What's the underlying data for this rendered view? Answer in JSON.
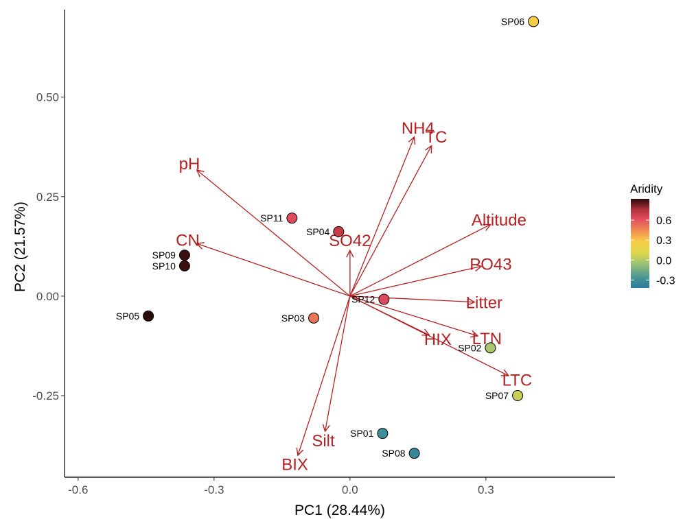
{
  "chart_data": {
    "type": "scatter",
    "subtype": "pca-biplot",
    "xlabel": "PC1 (28.44%)",
    "ylabel": "PC2 (21.57%)",
    "xlim": [
      -0.63,
      0.585
    ],
    "ylim": [
      -0.455,
      0.72
    ],
    "xticks": [
      -0.6,
      -0.3,
      0.0,
      0.3
    ],
    "xtick_labels": [
      "-0.6",
      "-0.3",
      "0.0",
      "0.3"
    ],
    "yticks": [
      -0.25,
      0.0,
      0.25,
      0.5
    ],
    "ytick_labels": [
      "-0.25",
      "0.00",
      "0.25",
      "0.50"
    ],
    "grid": false,
    "arrow_color": "#b22222",
    "points": [
      {
        "label": "SP01",
        "x": 0.072,
        "y": -0.345,
        "aridity": -0.3
      },
      {
        "label": "SP02",
        "x": 0.31,
        "y": -0.13,
        "aridity": -0.02
      },
      {
        "label": "SP03",
        "x": -0.08,
        "y": -0.055,
        "aridity": 0.5
      },
      {
        "label": "SP04",
        "x": -0.025,
        "y": 0.162,
        "aridity": 0.7
      },
      {
        "label": "SP05",
        "x": -0.445,
        "y": -0.05,
        "aridity": 0.92
      },
      {
        "label": "SP06",
        "x": 0.405,
        "y": 0.69,
        "aridity": 0.28
      },
      {
        "label": "SP07",
        "x": 0.37,
        "y": -0.25,
        "aridity": 0.05
      },
      {
        "label": "SP08",
        "x": 0.142,
        "y": -0.395,
        "aridity": -0.35
      },
      {
        "label": "SP09",
        "x": -0.365,
        "y": 0.103,
        "aridity": 0.9
      },
      {
        "label": "SP10",
        "x": -0.365,
        "y": 0.076,
        "aridity": 0.9
      },
      {
        "label": "SP11",
        "x": -0.128,
        "y": 0.196,
        "aridity": 0.62
      },
      {
        "label": "SP12",
        "x": 0.075,
        "y": -0.008,
        "aridity": 0.62
      }
    ],
    "vectors": [
      {
        "name": "pH",
        "x": -0.338,
        "y": 0.317
      },
      {
        "name": "CN",
        "x": -0.338,
        "y": 0.132
      },
      {
        "name": "NH4",
        "x": 0.142,
        "y": 0.4
      },
      {
        "name": "TC",
        "x": 0.18,
        "y": 0.378
      },
      {
        "name": "SO42",
        "x": 0.0,
        "y": 0.115
      },
      {
        "name": "Altitude",
        "x": 0.31,
        "y": 0.18
      },
      {
        "name": "PO43",
        "x": 0.29,
        "y": 0.075
      },
      {
        "name": "Litter",
        "x": 0.275,
        "y": -0.015
      },
      {
        "name": "HIX",
        "x": 0.175,
        "y": -0.098
      },
      {
        "name": "LTN",
        "x": 0.282,
        "y": -0.1
      },
      {
        "name": "LTC",
        "x": 0.35,
        "y": -0.2
      },
      {
        "name": "Silt",
        "x": -0.055,
        "y": -0.34
      },
      {
        "name": "BIX",
        "x": -0.115,
        "y": -0.4
      }
    ],
    "legend": {
      "title": "Aridity",
      "placement": "right",
      "ticks": [
        0.6,
        0.3,
        0.0,
        -0.3
      ],
      "tick_labels": [
        "0.6",
        "0.3",
        "0.0",
        "-0.3"
      ],
      "range": [
        -0.42,
        0.92
      ],
      "colormap": [
        {
          "v": -0.42,
          "color": "#2b7c9a"
        },
        {
          "v": -0.3,
          "color": "#3d8e98"
        },
        {
          "v": -0.05,
          "color": "#9ec273"
        },
        {
          "v": 0.1,
          "color": "#dcd64e"
        },
        {
          "v": 0.28,
          "color": "#f9cc48"
        },
        {
          "v": 0.45,
          "color": "#ef8a55"
        },
        {
          "v": 0.62,
          "color": "#df4b5c"
        },
        {
          "v": 0.75,
          "color": "#b5333d"
        },
        {
          "v": 0.92,
          "color": "#2a0b0b"
        }
      ]
    }
  }
}
